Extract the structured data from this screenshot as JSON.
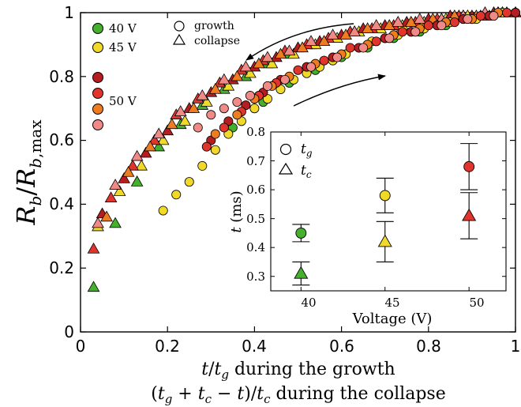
{
  "colors": {
    "v40": "#44b02c",
    "v45": "#f1d92a",
    "v50_dark": "#b51d20",
    "v50_red": "#e0342c",
    "v50_orange": "#ee7d22",
    "v50_pink": "#f08a87",
    "stroke": "#000000"
  },
  "chart_data": [
    {
      "type": "scatter",
      "title": "",
      "xlabel_line1": "t/t_g during the growth",
      "xlabel_line2": "(t_g + t_c − t)/t_c during the collapse",
      "ylabel": "R_b / R_b,max",
      "xlim": [
        0,
        1
      ],
      "ylim": [
        0,
        1
      ],
      "xticks": [
        0,
        0.2,
        0.4,
        0.6,
        0.8,
        1
      ],
      "yticks": [
        0,
        0.2,
        0.4,
        0.6,
        0.8,
        1
      ],
      "xtick_labels": [
        "0",
        "0.2",
        "0.4",
        "0.6",
        "0.8",
        "1"
      ],
      "ytick_labels": [
        "0",
        "0.2",
        "0.4",
        "0.6",
        "0.8",
        "1"
      ],
      "grid": false,
      "legend": {
        "placement": "top-left",
        "voltage_entries": [
          {
            "label": "40 V",
            "colors": [
              "v40"
            ]
          },
          {
            "label": "45 V",
            "colors": [
              "v45"
            ]
          },
          {
            "label": "50 V",
            "colors": [
              "v50_dark",
              "v50_red",
              "v50_orange",
              "v50_pink"
            ]
          }
        ],
        "marker_entries": [
          {
            "marker": "circle",
            "label": "growth"
          },
          {
            "marker": "triangle",
            "label": "collapse"
          }
        ]
      },
      "series": [
        {
          "voltage": "40 V",
          "color": "v40",
          "marker": "triangle",
          "x": [
            0.03,
            0.08,
            0.13,
            0.18,
            0.23,
            0.28,
            0.33,
            0.38,
            0.43,
            0.48,
            0.53,
            0.58,
            0.63,
            0.68,
            0.73,
            0.78,
            0.83,
            0.88,
            0.93,
            0.97,
            1.0
          ],
          "y": [
            0.14,
            0.34,
            0.47,
            0.58,
            0.65,
            0.71,
            0.76,
            0.8,
            0.84,
            0.87,
            0.9,
            0.92,
            0.94,
            0.95,
            0.96,
            0.97,
            0.98,
            0.99,
            0.99,
            1.0,
            1.0
          ]
        },
        {
          "voltage": "45 V",
          "color": "v45",
          "marker": "triangle",
          "x": [
            0.04,
            0.09,
            0.14,
            0.19,
            0.24,
            0.29,
            0.34,
            0.39,
            0.44,
            0.49,
            0.54,
            0.59,
            0.64,
            0.69,
            0.74,
            0.79,
            0.84,
            0.89,
            0.94,
            0.98
          ],
          "y": [
            0.33,
            0.44,
            0.52,
            0.6,
            0.66,
            0.72,
            0.77,
            0.81,
            0.84,
            0.87,
            0.9,
            0.92,
            0.94,
            0.95,
            0.96,
            0.97,
            0.98,
            0.99,
            0.99,
            1.0
          ]
        },
        {
          "voltage": "50 V",
          "color": "v50_dark",
          "marker": "triangle",
          "x": [
            0.05,
            0.1,
            0.15,
            0.2,
            0.25,
            0.3,
            0.35,
            0.4,
            0.45,
            0.5,
            0.55,
            0.6,
            0.65,
            0.7,
            0.75,
            0.8,
            0.85,
            0.9,
            0.95,
            1.0
          ],
          "y": [
            0.37,
            0.48,
            0.56,
            0.63,
            0.7,
            0.75,
            0.79,
            0.83,
            0.86,
            0.89,
            0.91,
            0.93,
            0.95,
            0.96,
            0.97,
            0.98,
            0.99,
            0.99,
            1.0,
            1.0
          ]
        },
        {
          "voltage": "50 V",
          "color": "v50_red",
          "marker": "triangle",
          "x": [
            0.03,
            0.07,
            0.12,
            0.17,
            0.22,
            0.27,
            0.32,
            0.37,
            0.42,
            0.47,
            0.52,
            0.57,
            0.62,
            0.67,
            0.72,
            0.77,
            0.82,
            0.87,
            0.92,
            0.96
          ],
          "y": [
            0.26,
            0.42,
            0.52,
            0.6,
            0.68,
            0.73,
            0.78,
            0.82,
            0.85,
            0.88,
            0.9,
            0.92,
            0.94,
            0.95,
            0.96,
            0.97,
            0.98,
            0.99,
            0.99,
            1.0
          ]
        },
        {
          "voltage": "50 V",
          "color": "v50_orange",
          "marker": "triangle",
          "x": [
            0.06,
            0.11,
            0.16,
            0.21,
            0.26,
            0.31,
            0.36,
            0.41,
            0.46,
            0.51,
            0.56,
            0.61,
            0.66,
            0.71,
            0.76,
            0.81,
            0.86,
            0.91,
            0.96
          ],
          "y": [
            0.36,
            0.5,
            0.58,
            0.65,
            0.7,
            0.76,
            0.8,
            0.84,
            0.87,
            0.89,
            0.91,
            0.93,
            0.95,
            0.96,
            0.97,
            0.98,
            0.99,
            0.99,
            1.0
          ]
        },
        {
          "voltage": "50 V",
          "color": "v50_pink",
          "marker": "triangle",
          "x": [
            0.04,
            0.08,
            0.13,
            0.18,
            0.23,
            0.28,
            0.33,
            0.38,
            0.43,
            0.48,
            0.53,
            0.58,
            0.63,
            0.68,
            0.73,
            0.78,
            0.83,
            0.88,
            0.93,
            0.97
          ],
          "y": [
            0.34,
            0.46,
            0.55,
            0.62,
            0.69,
            0.74,
            0.79,
            0.83,
            0.86,
            0.88,
            0.91,
            0.93,
            0.94,
            0.96,
            0.97,
            0.98,
            0.98,
            0.99,
            1.0,
            1.0
          ]
        },
        {
          "voltage": "40 V",
          "color": "v40",
          "marker": "circle",
          "x": [
            0.35,
            0.42,
            0.48,
            0.54,
            0.6,
            0.66,
            0.72,
            0.78,
            0.84,
            0.9,
            0.95,
            1.0
          ],
          "y": [
            0.64,
            0.72,
            0.78,
            0.82,
            0.86,
            0.89,
            0.92,
            0.94,
            0.96,
            0.98,
            0.99,
            1.0
          ]
        },
        {
          "voltage": "45 V",
          "color": "v45",
          "marker": "circle",
          "x": [
            0.19,
            0.22,
            0.25,
            0.28,
            0.31,
            0.34,
            0.37,
            0.4,
            0.43,
            0.46,
            0.49,
            0.52,
            0.55,
            0.58,
            0.61,
            0.64,
            0.67,
            0.7,
            0.73,
            0.76,
            0.79,
            0.82,
            0.85,
            0.88,
            0.91,
            0.94,
            0.97,
            1.0
          ],
          "y": [
            0.38,
            0.43,
            0.47,
            0.52,
            0.57,
            0.62,
            0.66,
            0.7,
            0.73,
            0.76,
            0.79,
            0.81,
            0.83,
            0.85,
            0.87,
            0.89,
            0.91,
            0.92,
            0.93,
            0.94,
            0.95,
            0.96,
            0.97,
            0.98,
            0.98,
            0.99,
            1.0,
            1.0
          ]
        },
        {
          "voltage": "50 V",
          "color": "v50_dark",
          "marker": "circle",
          "x": [
            0.3,
            0.34,
            0.38,
            0.42,
            0.46,
            0.52,
            0.58,
            0.64,
            0.7,
            0.76,
            0.82,
            0.88,
            0.94,
            1.0
          ],
          "y": [
            0.6,
            0.66,
            0.71,
            0.75,
            0.79,
            0.83,
            0.86,
            0.89,
            0.92,
            0.94,
            0.96,
            0.98,
            0.99,
            1.0
          ]
        },
        {
          "voltage": "50 V",
          "color": "v50_red",
          "marker": "circle",
          "x": [
            0.29,
            0.33,
            0.37,
            0.41,
            0.45,
            0.5,
            0.56,
            0.62,
            0.68,
            0.74,
            0.8,
            0.86,
            0.92,
            0.98
          ],
          "y": [
            0.58,
            0.64,
            0.69,
            0.74,
            0.78,
            0.82,
            0.85,
            0.89,
            0.91,
            0.94,
            0.96,
            0.97,
            0.99,
            1.0
          ]
        },
        {
          "voltage": "50 V",
          "color": "v50_orange",
          "marker": "circle",
          "x": [
            0.31,
            0.36,
            0.4,
            0.44,
            0.48,
            0.54,
            0.6,
            0.66,
            0.72,
            0.78,
            0.84,
            0.9,
            0.96
          ],
          "y": [
            0.62,
            0.68,
            0.73,
            0.77,
            0.8,
            0.84,
            0.87,
            0.9,
            0.93,
            0.95,
            0.97,
            0.98,
            1.0
          ]
        },
        {
          "voltage": "50 V",
          "color": "v50_pink",
          "marker": "circle",
          "x": [
            0.27,
            0.3,
            0.33,
            0.36,
            0.39,
            0.43,
            0.47,
            0.53,
            0.59,
            0.65,
            0.71,
            0.77,
            0.83,
            0.89,
            0.95
          ],
          "y": [
            0.64,
            0.68,
            0.7,
            0.72,
            0.74,
            0.77,
            0.79,
            0.83,
            0.86,
            0.89,
            0.92,
            0.94,
            0.96,
            0.98,
            0.99
          ]
        }
      ]
    },
    {
      "type": "scatter",
      "title": "",
      "xlabel": "Voltage (V)",
      "ylabel": "t (ms)",
      "xlim": [
        38.2,
        52.2
      ],
      "ylim": [
        0.25,
        0.8
      ],
      "xticks": [
        40,
        45,
        50
      ],
      "yticks": [
        0.3,
        0.4,
        0.5,
        0.6,
        0.7,
        0.8
      ],
      "xtick_labels": [
        "40",
        "45",
        "50"
      ],
      "ytick_labels": [
        "0.3",
        "0.4",
        "0.5",
        "0.6",
        "0.7",
        "0.8"
      ],
      "grid": false,
      "legend": {
        "placement": "top-left",
        "entries": [
          {
            "marker": "circle",
            "label": "t_g"
          },
          {
            "marker": "triangle",
            "label": "t_c"
          }
        ]
      },
      "points": [
        {
          "quantity": "t_g",
          "marker": "circle",
          "color": "v40",
          "x": 40,
          "y": 0.45,
          "err_low": 0.42,
          "err_high": 0.48
        },
        {
          "quantity": "t_c",
          "marker": "triangle",
          "color": "v40",
          "x": 40,
          "y": 0.31,
          "err_low": 0.27,
          "err_high": 0.35
        },
        {
          "quantity": "t_g",
          "marker": "circle",
          "color": "v45",
          "x": 45,
          "y": 0.58,
          "err_low": 0.52,
          "err_high": 0.64
        },
        {
          "quantity": "t_c",
          "marker": "triangle",
          "color": "v45",
          "x": 45,
          "y": 0.42,
          "err_low": 0.35,
          "err_high": 0.49
        },
        {
          "quantity": "t_g",
          "marker": "circle",
          "color": "v50_red",
          "x": 50,
          "y": 0.68,
          "err_low": 0.6,
          "err_high": 0.76
        },
        {
          "quantity": "t_c",
          "marker": "triangle",
          "color": "v50_red",
          "x": 50,
          "y": 0.51,
          "err_low": 0.43,
          "err_high": 0.59
        }
      ]
    }
  ]
}
